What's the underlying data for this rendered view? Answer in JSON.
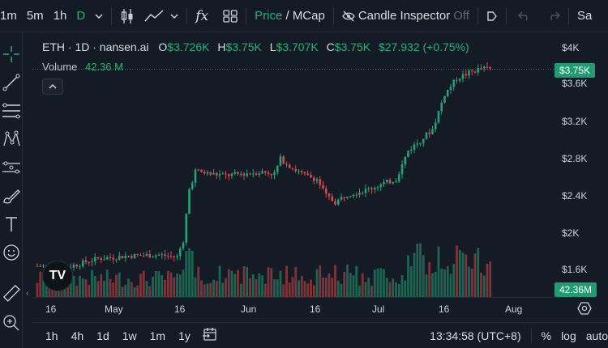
{
  "toolbar": {
    "intervals": [
      "1m",
      "5m",
      "1h",
      "D"
    ],
    "price_mcap_a": "Price",
    "price_mcap_sep": " / ",
    "price_mcap_b": "MCap",
    "candle_inspector": "Candle Inspector",
    "candle_inspector_state": "Off",
    "right_cut": "Sa"
  },
  "legend": {
    "symbol": "ETH · 1D · nansen.ai",
    "o_label": "O",
    "o_value": "$3.726K",
    "h_label": "H",
    "h_value": "$3.75K",
    "l_label": "L",
    "l_value": "$3.707K",
    "c_label": "C",
    "c_value": "$3.75K",
    "change": "$27.932 (+0.75%)"
  },
  "volume": {
    "label": "Volume",
    "value": "42.36 M"
  },
  "price_axis": {
    "ticks": [
      "$4K",
      "$3.6K",
      "$3.2K",
      "$2.8K",
      "$2.4K",
      "$2K",
      "$1.6K"
    ],
    "last_price": "$3.75K",
    "last_volume": "42.36M"
  },
  "time_axis": {
    "ticks": [
      "16",
      "May",
      "16",
      "Jun",
      "16",
      "Jul",
      "16",
      "Aug"
    ]
  },
  "bottom": {
    "ranges": [
      "1h",
      "4h",
      "1d",
      "1w",
      "1m",
      "1y"
    ],
    "time": "13:34:58 (UTC+8)",
    "percent": "%",
    "log": "log",
    "auto": "auto"
  },
  "logo_text": "TV",
  "colors": {
    "up": "#26a07a",
    "down": "#d2494f",
    "accent": "#26b07d",
    "background": "#141b24"
  }
}
